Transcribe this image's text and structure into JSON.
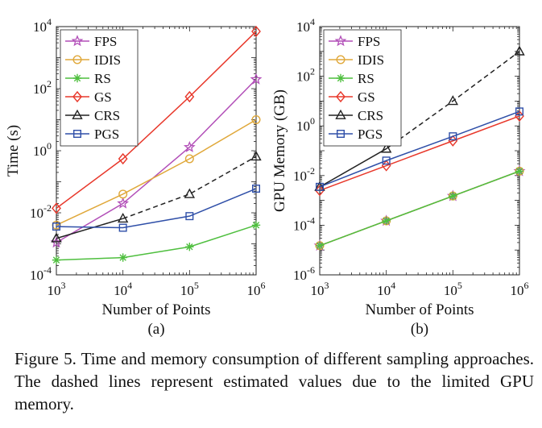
{
  "caption": "Figure 5. Time and memory consumption of different sampling approaches.  The dashed lines represent estimated values due to the limited GPU memory.",
  "chart_data": [
    {
      "type": "line",
      "panel_label": "(a)",
      "xlabel": "Number of Points",
      "ylabel": "Time (s)",
      "x_scale": "log",
      "y_scale": "log",
      "xlim": [
        1000,
        1000000
      ],
      "ylim": [
        0.0001,
        10000
      ],
      "x": [
        1000,
        10000,
        100000,
        1000000
      ],
      "x_tick_values": [
        1000,
        10000,
        100000,
        1000000
      ],
      "x_tick_labels": [
        {
          "base": "10",
          "exp": "3"
        },
        {
          "base": "10",
          "exp": "4"
        },
        {
          "base": "10",
          "exp": "5"
        },
        {
          "base": "10",
          "exp": "6"
        }
      ],
      "y_tick_values": [
        0.0001,
        0.01,
        1,
        100,
        10000
      ],
      "y_tick_labels": [
        {
          "base": "10",
          "exp": "-4"
        },
        {
          "base": "10",
          "exp": "-2"
        },
        {
          "base": "10",
          "exp": "0"
        },
        {
          "base": "10",
          "exp": "2"
        },
        {
          "base": "10",
          "exp": "4"
        }
      ],
      "legend_position": "top-left",
      "grid": false,
      "series": [
        {
          "name": "FPS",
          "color": "#b24fb8",
          "marker": "star",
          "values": [
            0.0011,
            0.02,
            1.3,
            200
          ],
          "dashed_from_index": null
        },
        {
          "name": "IDIS",
          "color": "#e0a83a",
          "marker": "circle",
          "values": [
            0.004,
            0.04,
            0.55,
            10
          ],
          "dashed_from_index": null
        },
        {
          "name": "RS",
          "color": "#4fbf3f",
          "marker": "asterisk",
          "values": [
            0.0003,
            0.00036,
            0.0008,
            0.004
          ],
          "dashed_from_index": null
        },
        {
          "name": "GS",
          "color": "#e8382b",
          "marker": "diamond",
          "values": [
            0.014,
            0.55,
            55,
            7000
          ],
          "dashed_from_index": null
        },
        {
          "name": "CRS",
          "color": "#222222",
          "marker": "triangle",
          "values": [
            0.0015,
            0.0065,
            0.04,
            0.65
          ],
          "dashed_from_index": 1
        },
        {
          "name": "PGS",
          "color": "#2f4fa8",
          "marker": "square",
          "values": [
            0.0036,
            0.0033,
            0.0078,
            0.06
          ],
          "dashed_from_index": null
        }
      ]
    },
    {
      "type": "line",
      "panel_label": "(b)",
      "xlabel": "Number of Points",
      "ylabel": "GPU Memory (GB)",
      "x_scale": "log",
      "y_scale": "log",
      "xlim": [
        1000,
        1000000
      ],
      "ylim": [
        1e-06,
        10000
      ],
      "x": [
        1000,
        10000,
        100000,
        1000000
      ],
      "x_tick_values": [
        1000,
        10000,
        100000,
        1000000
      ],
      "x_tick_labels": [
        {
          "base": "10",
          "exp": "3"
        },
        {
          "base": "10",
          "exp": "4"
        },
        {
          "base": "10",
          "exp": "5"
        },
        {
          "base": "10",
          "exp": "6"
        }
      ],
      "y_tick_values": [
        1e-06,
        0.0001,
        0.01,
        1,
        100,
        10000
      ],
      "y_tick_labels": [
        {
          "base": "10",
          "exp": "-6"
        },
        {
          "base": "10",
          "exp": "-4"
        },
        {
          "base": "10",
          "exp": "-2"
        },
        {
          "base": "10",
          "exp": "0"
        },
        {
          "base": "10",
          "exp": "2"
        },
        {
          "base": "10",
          "exp": "4"
        }
      ],
      "legend_position": "top-left",
      "grid": false,
      "series": [
        {
          "name": "FPS",
          "color": "#b24fb8",
          "marker": "star",
          "values": [
            1.5e-05,
            0.00015,
            0.0015,
            0.015
          ],
          "dashed_from_index": null
        },
        {
          "name": "IDIS",
          "color": "#e0a83a",
          "marker": "circle",
          "values": [
            1.5e-05,
            0.00015,
            0.0015,
            0.015
          ],
          "dashed_from_index": null
        },
        {
          "name": "RS",
          "color": "#4fbf3f",
          "marker": "asterisk",
          "values": [
            1.5e-05,
            0.00015,
            0.0015,
            0.015
          ],
          "dashed_from_index": null
        },
        {
          "name": "GS",
          "color": "#e8382b",
          "marker": "diamond",
          "values": [
            0.0025,
            0.025,
            0.25,
            2.5
          ],
          "dashed_from_index": null
        },
        {
          "name": "CRS",
          "color": "#222222",
          "marker": "triangle",
          "values": [
            0.0035,
            0.12,
            10,
            1000
          ],
          "dashed_from_index": 1
        },
        {
          "name": "PGS",
          "color": "#2f4fa8",
          "marker": "square",
          "values": [
            0.0035,
            0.04,
            0.38,
            3.8
          ],
          "dashed_from_index": null
        }
      ]
    }
  ]
}
